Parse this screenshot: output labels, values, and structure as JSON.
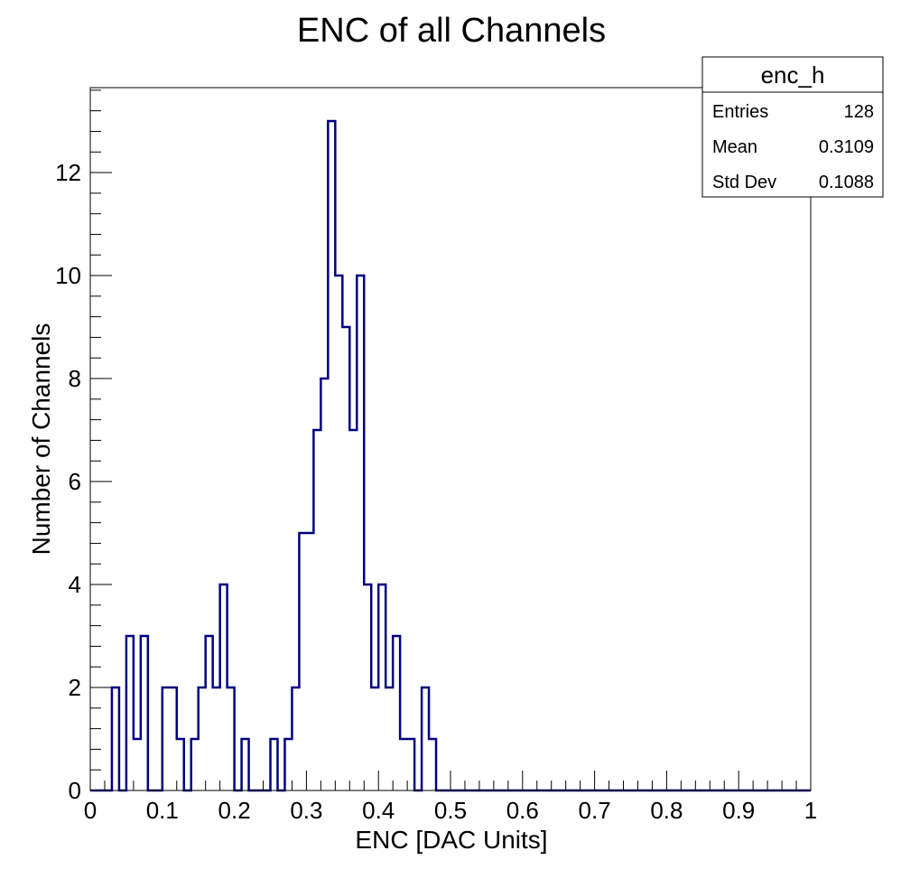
{
  "chart_data": {
    "type": "bar",
    "title": "ENC of all Channels",
    "xlabel": "ENC [DAC Units]",
    "ylabel": "Number of Channels",
    "xlim": [
      0,
      1
    ],
    "ylim": [
      0,
      13.65
    ],
    "grid": false,
    "line_color": "#000080",
    "bin_width": 0.01,
    "x_ticks": [
      {
        "value": 0,
        "label": "0"
      },
      {
        "value": 0.1,
        "label": "0.1"
      },
      {
        "value": 0.2,
        "label": "0.2"
      },
      {
        "value": 0.3,
        "label": "0.3"
      },
      {
        "value": 0.4,
        "label": "0.4"
      },
      {
        "value": 0.5,
        "label": "0.5"
      },
      {
        "value": 0.6,
        "label": "0.6"
      },
      {
        "value": 0.7,
        "label": "0.7"
      },
      {
        "value": 0.8,
        "label": "0.8"
      },
      {
        "value": 0.9,
        "label": "0.9"
      },
      {
        "value": 1,
        "label": "1"
      }
    ],
    "y_ticks": [
      {
        "value": 0,
        "label": "0"
      },
      {
        "value": 2,
        "label": "2"
      },
      {
        "value": 4,
        "label": "4"
      },
      {
        "value": 6,
        "label": "6"
      },
      {
        "value": 8,
        "label": "8"
      },
      {
        "value": 10,
        "label": "10"
      },
      {
        "value": 12,
        "label": "12"
      }
    ],
    "values": [
      0,
      0,
      0,
      2,
      0,
      3,
      1,
      3,
      0,
      0,
      2,
      2,
      1,
      0,
      1,
      2,
      3,
      2,
      4,
      2,
      0,
      1,
      0,
      0,
      0,
      1,
      0,
      1,
      2,
      5,
      5,
      7,
      8,
      13,
      10,
      9,
      7,
      10,
      4,
      2,
      4,
      2,
      3,
      1,
      1,
      0,
      2,
      1,
      0,
      0,
      0,
      0,
      0,
      0,
      0,
      0,
      0,
      0,
      0,
      0,
      0,
      0,
      0,
      0,
      0,
      0,
      0,
      0,
      0,
      0,
      0,
      0,
      0,
      0,
      0,
      0,
      0,
      0,
      0,
      0,
      0,
      0,
      0,
      0,
      0,
      0,
      0,
      0,
      0,
      0,
      0,
      0,
      0,
      0,
      0,
      0,
      0,
      0,
      0,
      0
    ],
    "stats_box": {
      "title": "enc_h",
      "rows": [
        {
          "label": "Entries",
          "value": "128"
        },
        {
          "label": "Mean",
          "value": "0.3109"
        },
        {
          "label": "Std Dev",
          "value": "0.1088"
        }
      ]
    }
  }
}
